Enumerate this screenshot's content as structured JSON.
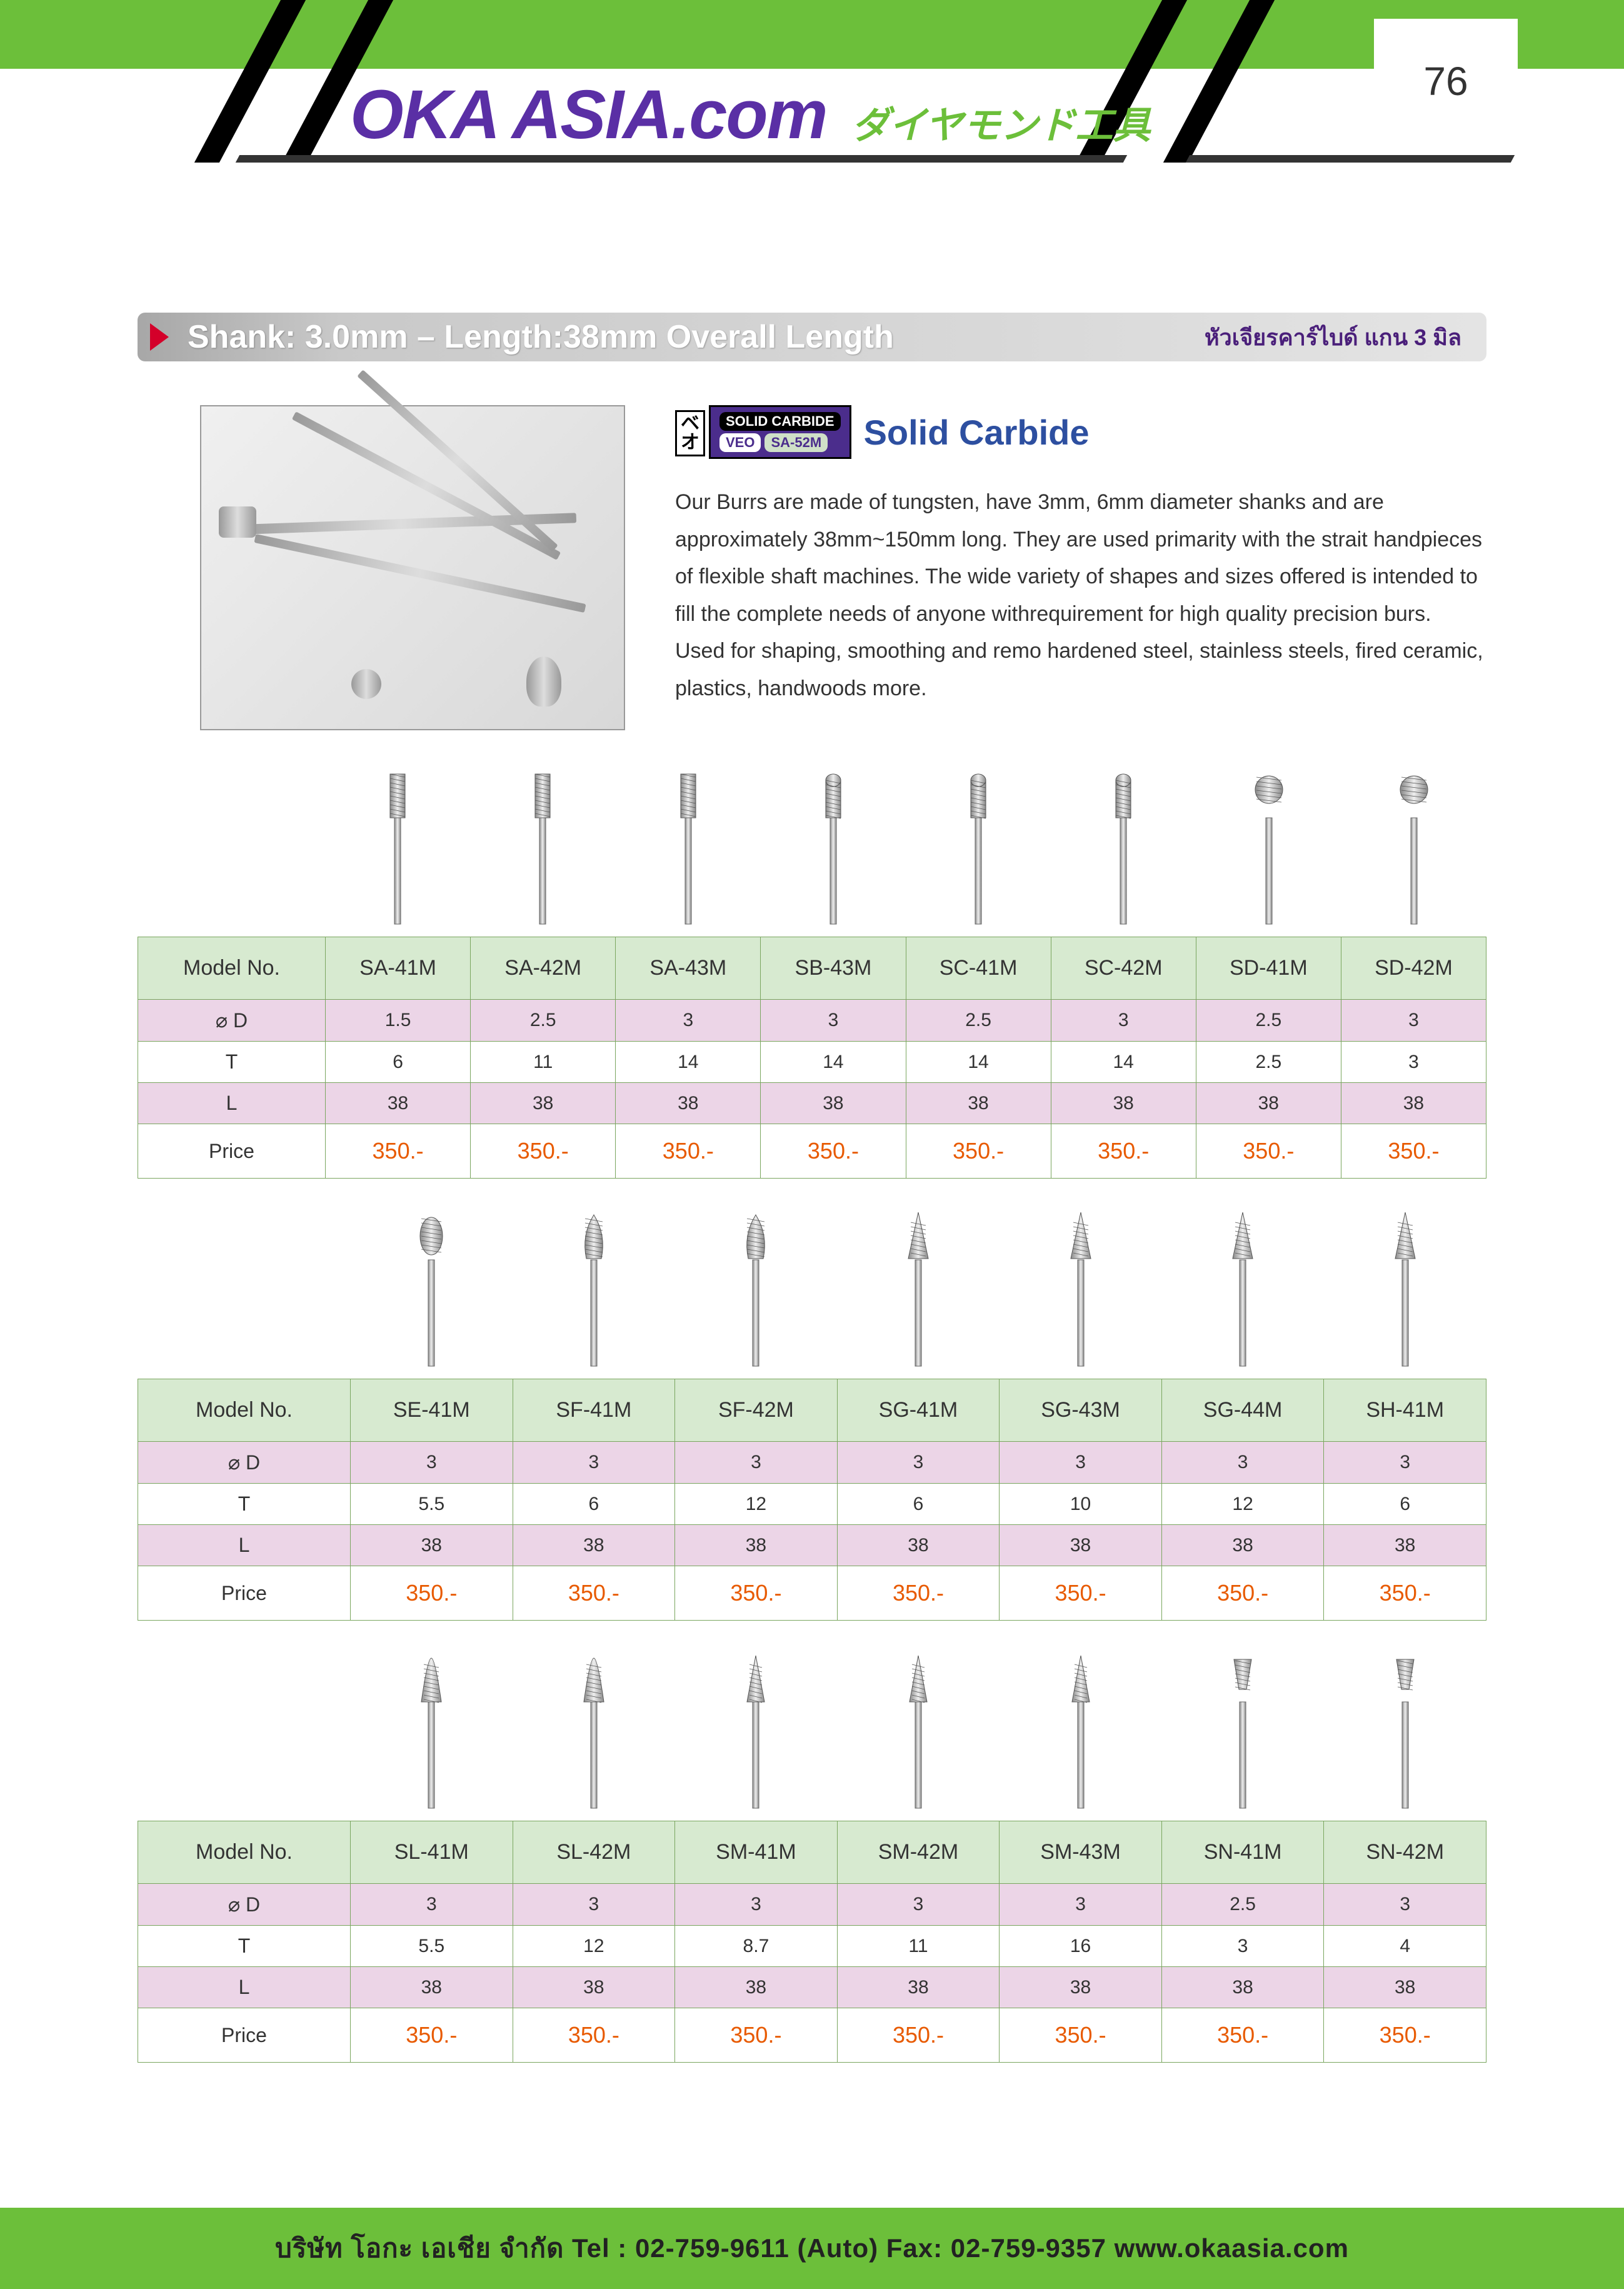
{
  "page_number": "76",
  "brand_main": "OKA ASIA.com",
  "brand_sub": "ダイヤモンド工具",
  "section": {
    "title": "Shank:   3.0mm – Length:38mm Overall Length",
    "title_thai": "หัวเจียรคาร์ไบด์ แกน 3 มิล"
  },
  "badge": {
    "jp": "ベオ",
    "line1": "SOLID CARBIDE",
    "tag_left": "VEO",
    "tag_right": "SA-52M"
  },
  "solid_carbide_title": "Solid Carbide",
  "intro": "Our Burrs are made of tungsten, have 3mm, 6mm diameter shanks and are approximately 38mm~150mm long. They are used primarity with the strait handpieces of flexible shaft machines. The wide variety of shapes and sizes offered is intended to fill the complete needs of anyone withrequirement for high quality precision burs. Used for shaping, smoothing and remo hardened steel, stainless steels, fired ceramic, plastics, handwoods more.",
  "row_labels": {
    "model": "Model No.",
    "d": "D",
    "t": "T",
    "l": "L",
    "price": "Price"
  },
  "colors": {
    "green_header": "#d7ead0",
    "pink_row": "#ecd5e7",
    "price_text": "#e85a00",
    "border": "#7aa65f",
    "brand_purple": "#5a2fa5",
    "brand_green": "#6cbf3a"
  },
  "tables": [
    {
      "label_width": 300,
      "models": [
        "SA-41M",
        "SA-42M",
        "SA-43M",
        "SB-43M",
        "SC-41M",
        "SC-42M",
        "SD-41M",
        "SD-42M"
      ],
      "d": [
        "1.5",
        "2.5",
        "3",
        "3",
        "2.5",
        "3",
        "2.5",
        "3"
      ],
      "t": [
        "6",
        "11",
        "14",
        "14",
        "14",
        "14",
        "2.5",
        "3"
      ],
      "l": [
        "38",
        "38",
        "38",
        "38",
        "38",
        "38",
        "38",
        "38"
      ],
      "price": [
        "350.-",
        "350.-",
        "350.-",
        "350.-",
        "350.-",
        "350.-",
        "350.-",
        "350.-"
      ],
      "shapes": [
        "cyl-flat",
        "cyl-flat",
        "cyl-flat",
        "cyl-round",
        "cyl-round",
        "cyl-round",
        "ball",
        "ball"
      ]
    },
    {
      "label_width": 340,
      "models": [
        "SE-41M",
        "SF-41M",
        "SF-42M",
        "SG-41M",
        "SG-43M",
        "SG-44M",
        "SH-41M"
      ],
      "d": [
        "3",
        "3",
        "3",
        "3",
        "3",
        "3",
        "3"
      ],
      "t": [
        "5.5",
        "6",
        "12",
        "6",
        "10",
        "12",
        "6"
      ],
      "l": [
        "38",
        "38",
        "38",
        "38",
        "38",
        "38",
        "38"
      ],
      "price": [
        "350.-",
        "350.-",
        "350.-",
        "350.-",
        "350.-",
        "350.-",
        "350.-"
      ],
      "shapes": [
        "oval",
        "tree-round",
        "tree-round",
        "tree-point",
        "tree-point",
        "tree-point",
        "flame"
      ]
    },
    {
      "label_width": 340,
      "models": [
        "SL-41M",
        "SL-42M",
        "SM-41M",
        "SM-42M",
        "SM-43M",
        "SN-41M",
        "SN-42M"
      ],
      "d": [
        "3",
        "3",
        "3",
        "3",
        "3",
        "2.5",
        "3"
      ],
      "t": [
        "5.5",
        "12",
        "8.7",
        "11",
        "16",
        "3",
        "4"
      ],
      "l": [
        "38",
        "38",
        "38",
        "38",
        "38",
        "38",
        "38"
      ],
      "price": [
        "350.-",
        "350.-",
        "350.-",
        "350.-",
        "350.-",
        "350.-",
        "350.-"
      ],
      "shapes": [
        "cone-round",
        "cone-round",
        "cone-point",
        "cone-point",
        "cone-point",
        "inv-cone",
        "inv-cone"
      ]
    }
  ],
  "footer": "บริษัท โอกะ เอเชีย จำกัด   Tel : 02-759-9611 (Auto) Fax: 02-759-9357   www.okaasia.com"
}
